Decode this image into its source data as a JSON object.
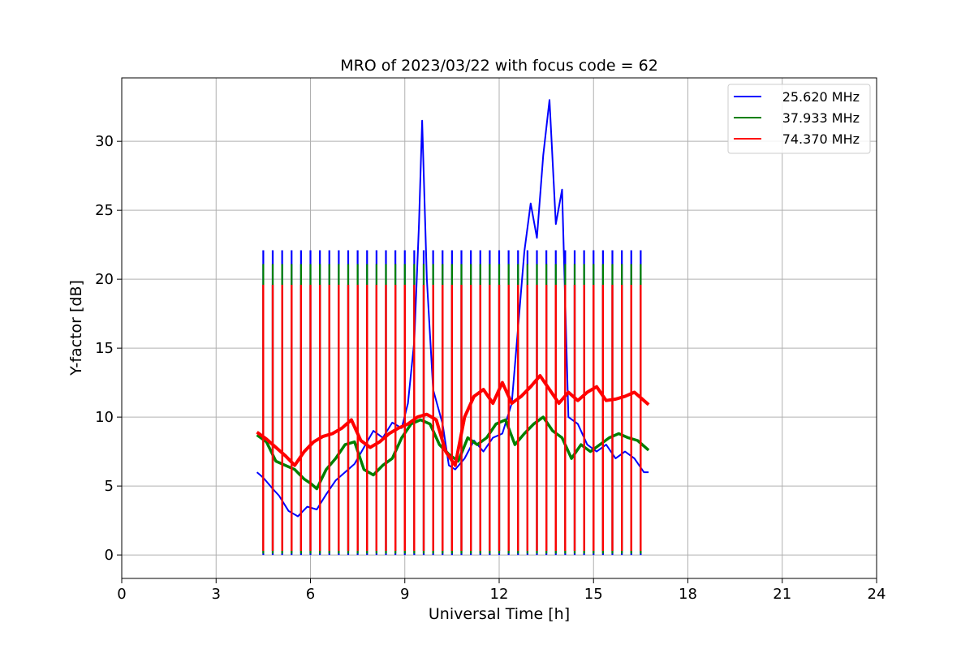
{
  "chart_data": {
    "type": "line",
    "title": "MRO of 2023/03/22 with focus code = 62",
    "xlabel": "Universal Time [h]",
    "ylabel": "Y-factor [dB]",
    "xlim": [
      0,
      24
    ],
    "ylim": [
      -1.7,
      34.6
    ],
    "xticks": [
      0,
      3,
      6,
      9,
      12,
      15,
      18,
      21,
      24
    ],
    "yticks": [
      0,
      5,
      10,
      15,
      20,
      25,
      30
    ],
    "grid": true,
    "legend_position": "top-right",
    "series": [
      {
        "name": "25.620 MHz",
        "color": "#0000ff",
        "x": [
          4.3,
          4.5,
          4.8,
          5.0,
          5.3,
          5.6,
          5.9,
          6.2,
          6.5,
          6.8,
          7.1,
          7.4,
          7.7,
          8.0,
          8.3,
          8.6,
          8.9,
          9.1,
          9.3,
          9.45,
          9.55,
          9.7,
          9.9,
          10.2,
          10.4,
          10.6,
          10.9,
          11.2,
          11.5,
          11.8,
          12.1,
          12.4,
          12.6,
          12.8,
          13.0,
          13.2,
          13.4,
          13.6,
          13.8,
          14.0,
          14.2,
          14.5,
          14.8,
          15.1,
          15.4,
          15.7,
          16.0,
          16.3,
          16.6,
          16.75
        ],
        "y": [
          6.0,
          5.6,
          4.8,
          4.3,
          3.2,
          2.8,
          3.5,
          3.3,
          4.4,
          5.4,
          6.0,
          6.6,
          7.8,
          9.0,
          8.5,
          9.6,
          9.2,
          11.0,
          15.5,
          24.0,
          31.5,
          20.0,
          12.0,
          9.5,
          6.5,
          6.2,
          7.0,
          8.3,
          7.5,
          8.5,
          8.8,
          11.0,
          16.5,
          22.0,
          25.5,
          23.0,
          29.0,
          33.0,
          24.0,
          26.5,
          10.0,
          9.5,
          8.0,
          7.5,
          8.0,
          7.0,
          7.5,
          7.0,
          6.0,
          6.0
        ]
      },
      {
        "name": "37.933 MHz",
        "color": "#008000",
        "x": [
          4.3,
          4.6,
          4.9,
          5.2,
          5.5,
          5.8,
          6.0,
          6.2,
          6.5,
          6.8,
          7.1,
          7.4,
          7.7,
          8.0,
          8.3,
          8.6,
          8.9,
          9.2,
          9.5,
          9.8,
          10.1,
          10.4,
          10.7,
          11.0,
          11.3,
          11.6,
          11.9,
          12.2,
          12.5,
          12.8,
          13.1,
          13.4,
          13.7,
          14.0,
          14.3,
          14.6,
          14.9,
          15.2,
          15.5,
          15.8,
          16.1,
          16.4,
          16.75
        ],
        "y": [
          8.7,
          8.2,
          6.8,
          6.5,
          6.2,
          5.5,
          5.2,
          4.8,
          6.2,
          7.0,
          8.0,
          8.2,
          6.2,
          5.8,
          6.5,
          7.0,
          8.5,
          9.5,
          9.8,
          9.5,
          8.0,
          7.3,
          6.8,
          8.5,
          8.0,
          8.5,
          9.5,
          9.8,
          8.0,
          8.8,
          9.5,
          10.0,
          9.0,
          8.5,
          7.0,
          8.0,
          7.5,
          8.0,
          8.5,
          8.8,
          8.5,
          8.3,
          7.6
        ]
      },
      {
        "name": "74.370 MHz",
        "color": "#ff0000",
        "x": [
          4.3,
          4.6,
          4.9,
          5.2,
          5.5,
          5.8,
          6.1,
          6.4,
          6.7,
          7.0,
          7.3,
          7.6,
          7.9,
          8.2,
          8.5,
          8.8,
          9.1,
          9.4,
          9.7,
          10.0,
          10.3,
          10.6,
          10.9,
          11.2,
          11.5,
          11.8,
          12.1,
          12.4,
          12.7,
          13.0,
          13.3,
          13.6,
          13.9,
          14.2,
          14.5,
          14.8,
          15.1,
          15.4,
          15.7,
          16.0,
          16.3,
          16.75
        ],
        "y": [
          8.9,
          8.4,
          7.8,
          7.2,
          6.5,
          7.5,
          8.2,
          8.6,
          8.8,
          9.2,
          9.8,
          8.3,
          7.8,
          8.2,
          8.8,
          9.2,
          9.5,
          10.0,
          10.2,
          9.8,
          7.5,
          6.5,
          10.0,
          11.5,
          12.0,
          11.0,
          12.5,
          11.0,
          11.5,
          12.2,
          13.0,
          12.0,
          11.0,
          11.8,
          11.2,
          11.8,
          12.2,
          11.2,
          11.3,
          11.5,
          11.8,
          10.9
        ]
      }
    ]
  }
}
